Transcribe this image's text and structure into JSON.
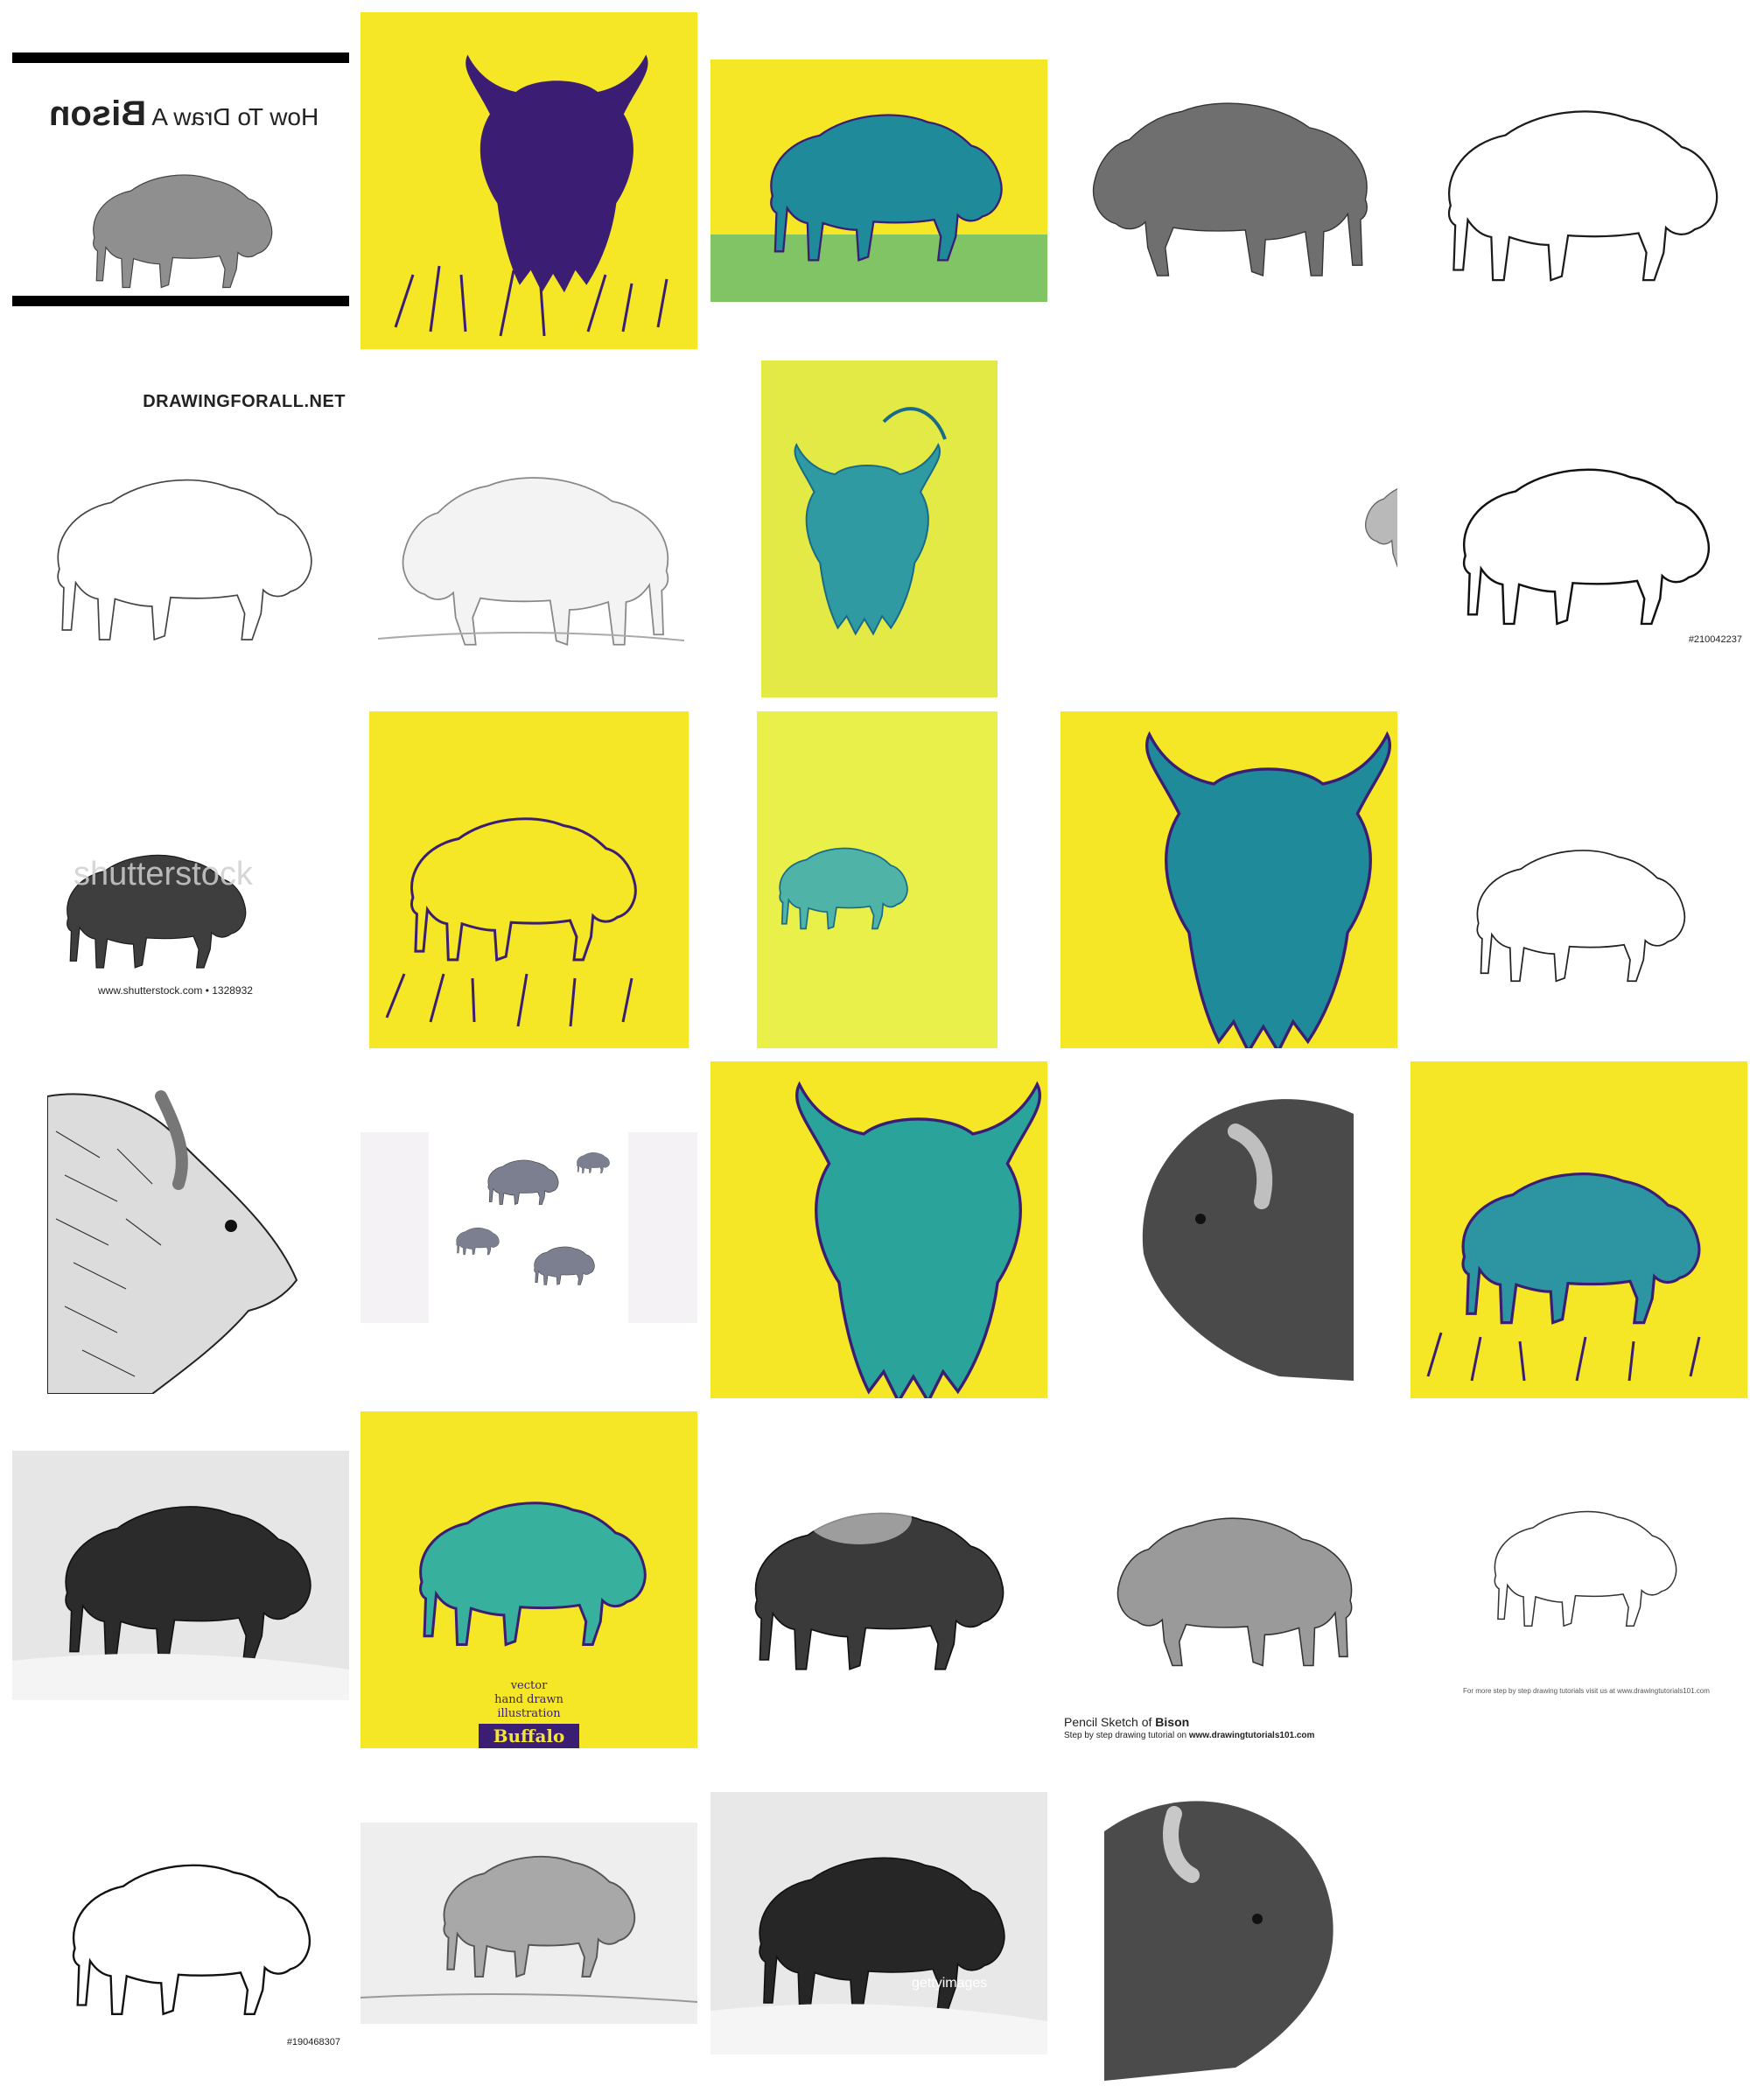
{
  "colors": {
    "yellow": "#f5e626",
    "navy": "#3b1e74",
    "teal": "#1fa89a",
    "ink": "#2a2a2a",
    "gray_fill": "#6f6f6f",
    "light_gray": "#cfcfcf"
  },
  "tiles": [
    {
      "name": "how-to-draw-bison",
      "title_mirrored": "How To Draw A",
      "title_word": "Bison"
    },
    {
      "name": "bison-yellow-grass"
    },
    {
      "name": "bison-yellow-landscape"
    },
    {
      "name": "bison-pencil-gray"
    },
    {
      "name": "bison-line-art"
    },
    {
      "name": "bison-drawingforall",
      "watermark": "DRAWINGFORALL.NET"
    },
    {
      "name": "bison-pencil-sketch"
    },
    {
      "name": "bison-yellow-walking"
    },
    {
      "name": "bison-gray-small"
    },
    {
      "name": "bison-stipple",
      "stock_id": "#210042237"
    },
    {
      "name": "bison-shutterstock",
      "watermark": "shutterstock",
      "caption": "www.shutterstock.com • 1328932"
    },
    {
      "name": "bison-yellow-front"
    },
    {
      "name": "bison-yellow-rear"
    },
    {
      "name": "bison-yellow-head"
    },
    {
      "name": "bison-outline-walking"
    },
    {
      "name": "bison-hatched-head"
    },
    {
      "name": "bison-small-group"
    },
    {
      "name": "bison-yellow-head-2"
    },
    {
      "name": "bison-charcoal-head"
    },
    {
      "name": "bison-yellow-grass-2"
    },
    {
      "name": "bison-engraving-snow"
    },
    {
      "name": "bison-buffalo-vector",
      "text_lines": [
        "vector",
        "hand drawn",
        "illustration"
      ],
      "badge": "Buffalo"
    },
    {
      "name": "bison-ink-wash"
    },
    {
      "name": "bison-pencil-tutorial",
      "caption_prefix": "Pencil Sketch of ",
      "caption_bold": "Bison",
      "sub_prefix": "Step by step drawing tutorial on ",
      "sub_bold": "www.drawingtutorials101.com"
    },
    {
      "name": "bison-outline-tutorial",
      "caption": "For more step by step drawing tutorials visit us at www.drawingtutorials101.com"
    },
    {
      "name": "bison-ink-side",
      "stock_id": "#190468307"
    },
    {
      "name": "bison-pencil-landscape"
    },
    {
      "name": "bison-engraving-snow-2",
      "watermark": "gettyimages"
    },
    {
      "name": "bison-realistic-head"
    }
  ]
}
